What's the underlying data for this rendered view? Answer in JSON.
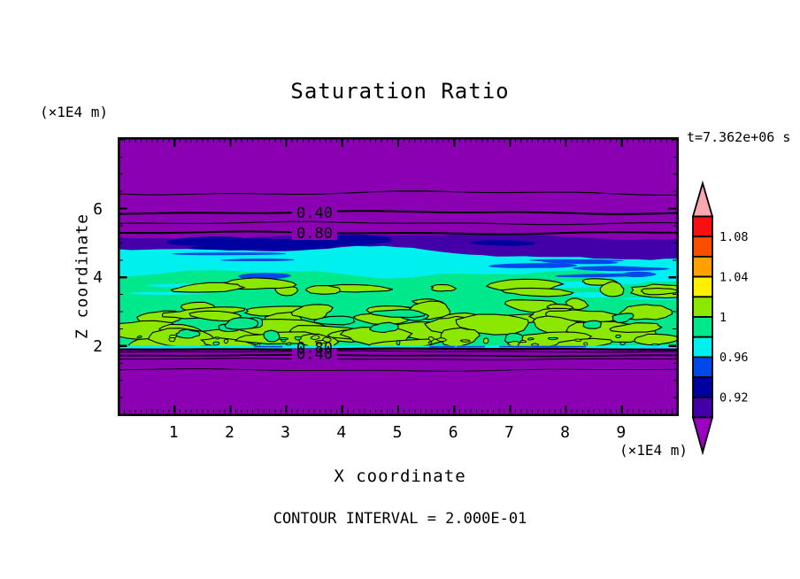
{
  "title": "Saturation Ratio",
  "header": {
    "z_axis_unit": "(×1E4 m)",
    "time_label": "t=7.362e+06 s"
  },
  "axes": {
    "x": {
      "label": "X coordinate",
      "unit": "(×1E4 m)",
      "tick_labels": [
        "1",
        "2",
        "3",
        "4",
        "5",
        "6",
        "7",
        "8",
        "9"
      ]
    },
    "z": {
      "label": "Z coordinate",
      "tick_labels": [
        "6",
        "4",
        "2"
      ]
    }
  },
  "footer": {
    "contour_note": "CONTOUR INTERVAL = 2.000E-01"
  },
  "chart_data": {
    "type": "heatmap",
    "title": "Saturation Ratio",
    "xlabel": "X coordinate",
    "ylabel": "Z coordinate",
    "x_unit": "(×1E4 m)",
    "z_unit": "(×1E4 m)",
    "time": "t=7.362e+06 s",
    "x_range": [
      0,
      10
    ],
    "z_range": [
      0,
      8.1
    ],
    "x_ticks": [
      1,
      2,
      3,
      4,
      5,
      6,
      7,
      8,
      9
    ],
    "z_ticks": [
      2,
      4,
      6
    ],
    "contour_interval": 0.2,
    "contour_interval_label": "CONTOUR INTERVAL = 2.000E-01",
    "upper_contour_labels": [
      "0.40",
      "0.80"
    ],
    "lower_contour_labels": [
      "0.80",
      "0.40"
    ],
    "colorbar": {
      "tick_labels": [
        "1.08",
        "1.04",
        "1",
        "0.96",
        "0.92"
      ],
      "cell_ranges_top_to_bottom": [
        [
          1.08,
          1.1
        ],
        [
          1.06,
          1.08
        ],
        [
          1.04,
          1.06
        ],
        [
          1.02,
          1.04
        ],
        [
          1.0,
          1.02
        ],
        [
          0.98,
          1.0
        ],
        [
          0.96,
          0.98
        ],
        [
          0.94,
          0.96
        ],
        [
          0.92,
          0.94
        ],
        [
          0.9,
          0.92
        ]
      ],
      "cell_colors_top_to_bottom": [
        "#F80F0F",
        "#F94D00",
        "#FFA000",
        "#FFF000",
        "#8CE800",
        "#00E88C",
        "#00F0F0",
        "#0048E8",
        "#0000A0",
        "#4400A8"
      ],
      "over_color": "#F9A8B0",
      "under_color": "#9C00C0"
    },
    "colors": {
      "background": "#8A00B2",
      "indigo": "#4400A8",
      "navy": "#0000A0",
      "blue": "#0048E8",
      "cyan": "#00F0F0",
      "green": "#00E88C",
      "green_yellow": "#8CE800",
      "contour_line": "#000000"
    },
    "regions_top_to_bottom": [
      {
        "z_range": [
          5.6,
          8.1
        ],
        "saturation": "< 0.9",
        "note": "uniform low-saturation zone with labeled contour lines 0.20-0.80"
      },
      {
        "z_range": [
          4.6,
          5.6
        ],
        "saturation": "0.90-0.96",
        "note": "dark indigo/navy/blue transition band"
      },
      {
        "z_range": [
          4.2,
          5.0
        ],
        "saturation": "0.96-0.98",
        "note": "cyan band with blue streaks"
      },
      {
        "z_range": [
          1.95,
          4.4
        ],
        "saturation": "0.98-1.02",
        "note": "mottled green lens, 1.0 contour outlines yellow-green patches"
      },
      {
        "z_range": [
          0,
          1.95
        ],
        "saturation": "< 0.9",
        "note": "uniform low-saturation zone, stacked contour lines 0.80/0.40 at upper boundary"
      }
    ]
  }
}
